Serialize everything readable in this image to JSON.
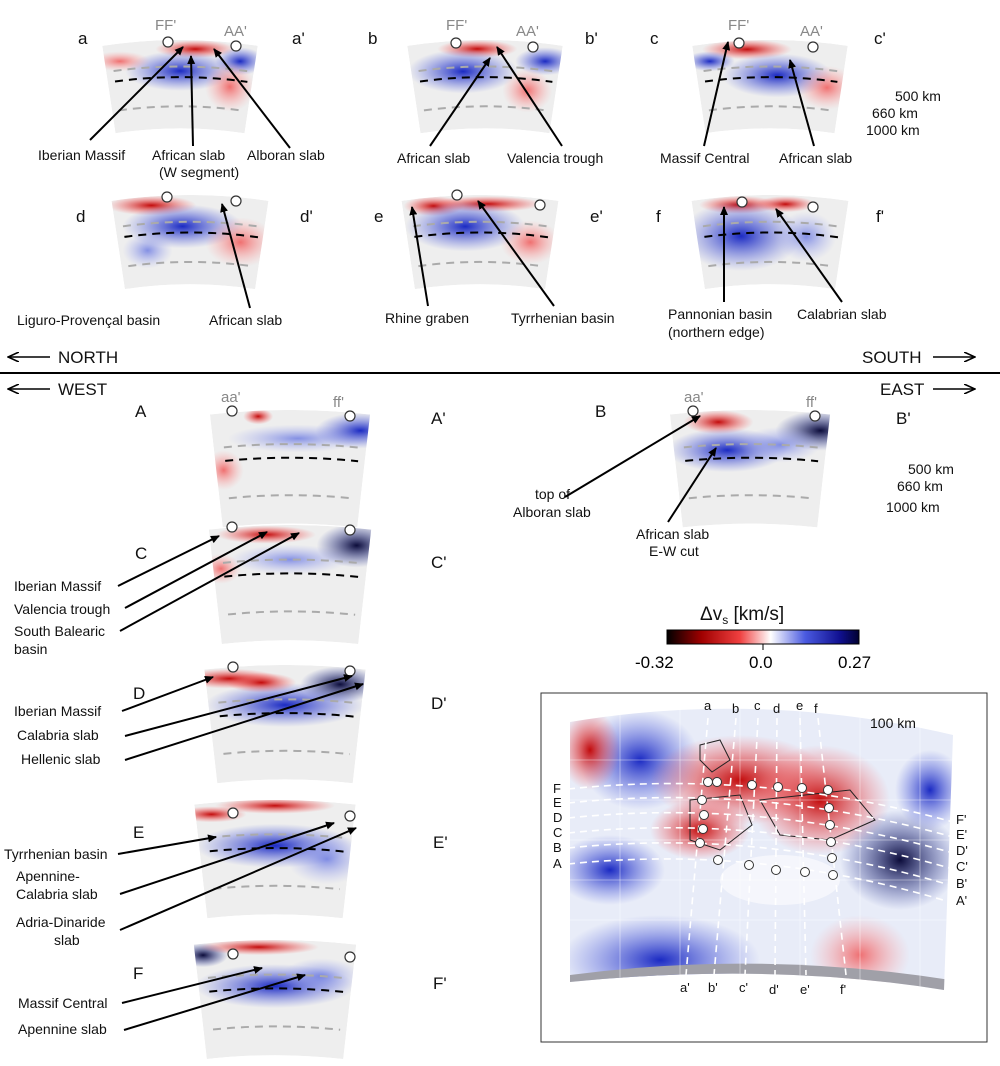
{
  "top_panels": [
    {
      "id": "a",
      "left_label": "a",
      "right_label": "a'",
      "markers": [
        "FF'",
        "AA'"
      ]
    },
    {
      "id": "b",
      "left_label": "b",
      "right_label": "b'",
      "markers": [
        "FF'",
        "AA'"
      ]
    },
    {
      "id": "c",
      "left_label": "c",
      "right_label": "c'",
      "markers": [
        "FF'",
        "AA'"
      ]
    },
    {
      "id": "d",
      "left_label": "d",
      "right_label": "d'",
      "markers": []
    },
    {
      "id": "e",
      "left_label": "e",
      "right_label": "e'",
      "markers": []
    },
    {
      "id": "f",
      "left_label": "f",
      "right_label": "f'",
      "markers": []
    }
  ],
  "depth_labels": [
    "500 km",
    "660 km",
    "1000 km"
  ],
  "annotations_top": {
    "a": [
      "Iberian Massif",
      "African slab",
      "(W segment)",
      "Alboran slab"
    ],
    "b": [
      "African slab",
      "Valencia trough"
    ],
    "c": [
      "Massif Central",
      "African slab"
    ],
    "d": [
      "Liguro-Provençal basin",
      "African slab"
    ],
    "e": [
      "Rhine graben",
      "Tyrrhenian basin"
    ],
    "f": [
      "Pannonian basin",
      "(northern edge)",
      "Calabrian slab"
    ]
  },
  "directions": {
    "north": "NORTH",
    "south": "SOUTH",
    "west": "WEST",
    "east": "EAST"
  },
  "bottom_panels": [
    {
      "id": "A",
      "left_label": "A",
      "right_label": "A'",
      "markers": [
        "aa'",
        "ff'"
      ]
    },
    {
      "id": "B",
      "left_label": "B",
      "right_label": "B'",
      "markers": [
        "aa'",
        "ff'"
      ]
    },
    {
      "id": "C",
      "left_label": "C",
      "right_label": "C'",
      "markers": []
    },
    {
      "id": "D",
      "left_label": "D",
      "right_label": "D'",
      "markers": []
    },
    {
      "id": "E",
      "left_label": "E",
      "right_label": "E'",
      "markers": []
    },
    {
      "id": "F",
      "left_label": "F",
      "right_label": "F'",
      "markers": []
    }
  ],
  "annotations_bottom": {
    "B": [
      "top of",
      "Alboran slab",
      "African slab",
      "E-W cut"
    ],
    "C": [
      "Iberian Massif",
      "Valencia trough",
      "South Balearic",
      "basin"
    ],
    "D": [
      "Iberian Massif",
      "Calabria slab",
      "Hellenic slab"
    ],
    "E": [
      "Tyrrhenian basin",
      "Apennine-",
      "Calabria slab",
      "Adria-Dinaride",
      "slab"
    ],
    "F": [
      "Massif Central",
      "Apennine slab"
    ]
  },
  "colorbar": {
    "title": "Δv",
    "title_sub": "s",
    "title_unit": "[km/s]",
    "min_label": "-0.32",
    "mid_label": "0.0",
    "max_label": "0.27",
    "colors": {
      "neg": "#8b0000",
      "pos": "#0a0a60",
      "zero": "#ffffff"
    }
  },
  "map": {
    "depth_label": "100 km",
    "top_letters": [
      "a",
      "b",
      "c",
      "d",
      "e",
      "f"
    ],
    "bottom_letters": [
      "a'",
      "b'",
      "c'",
      "d'",
      "e'",
      "f'"
    ],
    "left_letters": [
      "F",
      "E",
      "D",
      "C",
      "B",
      "A"
    ],
    "right_letters": [
      "F'",
      "E'",
      "D'",
      "C'",
      "B'",
      "A'"
    ]
  }
}
